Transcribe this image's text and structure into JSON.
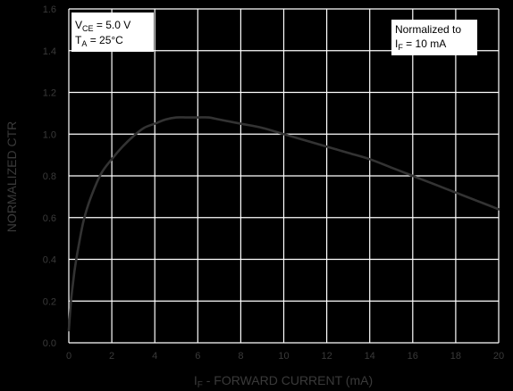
{
  "chart_data": {
    "type": "line",
    "xlabel": {
      "prefix": "I",
      "sub": "F",
      "rest": " - FORWARD CURRENT (mA)"
    },
    "ylabel": "NORMALIZED CTR",
    "xlim": [
      0,
      20
    ],
    "ylim": [
      0.0,
      1.6
    ],
    "x_ticks": [
      "0",
      "2",
      "4",
      "6",
      "8",
      "10",
      "12",
      "14",
      "16",
      "18",
      "20"
    ],
    "y_ticks": [
      "0.0",
      "0.2",
      "0.4",
      "0.6",
      "0.8",
      "1.0",
      "1.2",
      "1.4",
      "1.6"
    ],
    "grid": true,
    "series": [
      {
        "x": [
          0.0,
          0.1,
          0.2,
          0.3,
          0.5,
          0.7,
          1,
          1.5,
          2,
          2.5,
          3,
          3.5,
          4,
          4.5,
          5,
          5.5,
          6,
          6.5,
          7,
          8,
          9,
          10,
          11,
          12,
          13,
          14,
          15,
          16,
          17,
          18,
          19,
          20
        ],
        "y": [
          0.06,
          0.2,
          0.29,
          0.37,
          0.49,
          0.59,
          0.69,
          0.81,
          0.88,
          0.94,
          0.99,
          1.03,
          1.05,
          1.07,
          1.08,
          1.08,
          1.08,
          1.08,
          1.07,
          1.05,
          1.03,
          1.0,
          0.97,
          0.94,
          0.91,
          0.88,
          0.84,
          0.8,
          0.76,
          0.72,
          0.68,
          0.64
        ],
        "color": "#333333"
      }
    ],
    "annotations": [
      {
        "lines": [
          {
            "prefix": "V",
            "sub": "CE",
            "rest": " = 5.0 V"
          },
          {
            "prefix": "T",
            "sub": "A",
            "rest": " = 25°C"
          }
        ]
      },
      {
        "lines": [
          {
            "prefix": "Normalized to",
            "sub": "",
            "rest": ""
          },
          {
            "prefix": "I",
            "sub": "F",
            "rest": " = 10 mA"
          }
        ]
      }
    ]
  }
}
